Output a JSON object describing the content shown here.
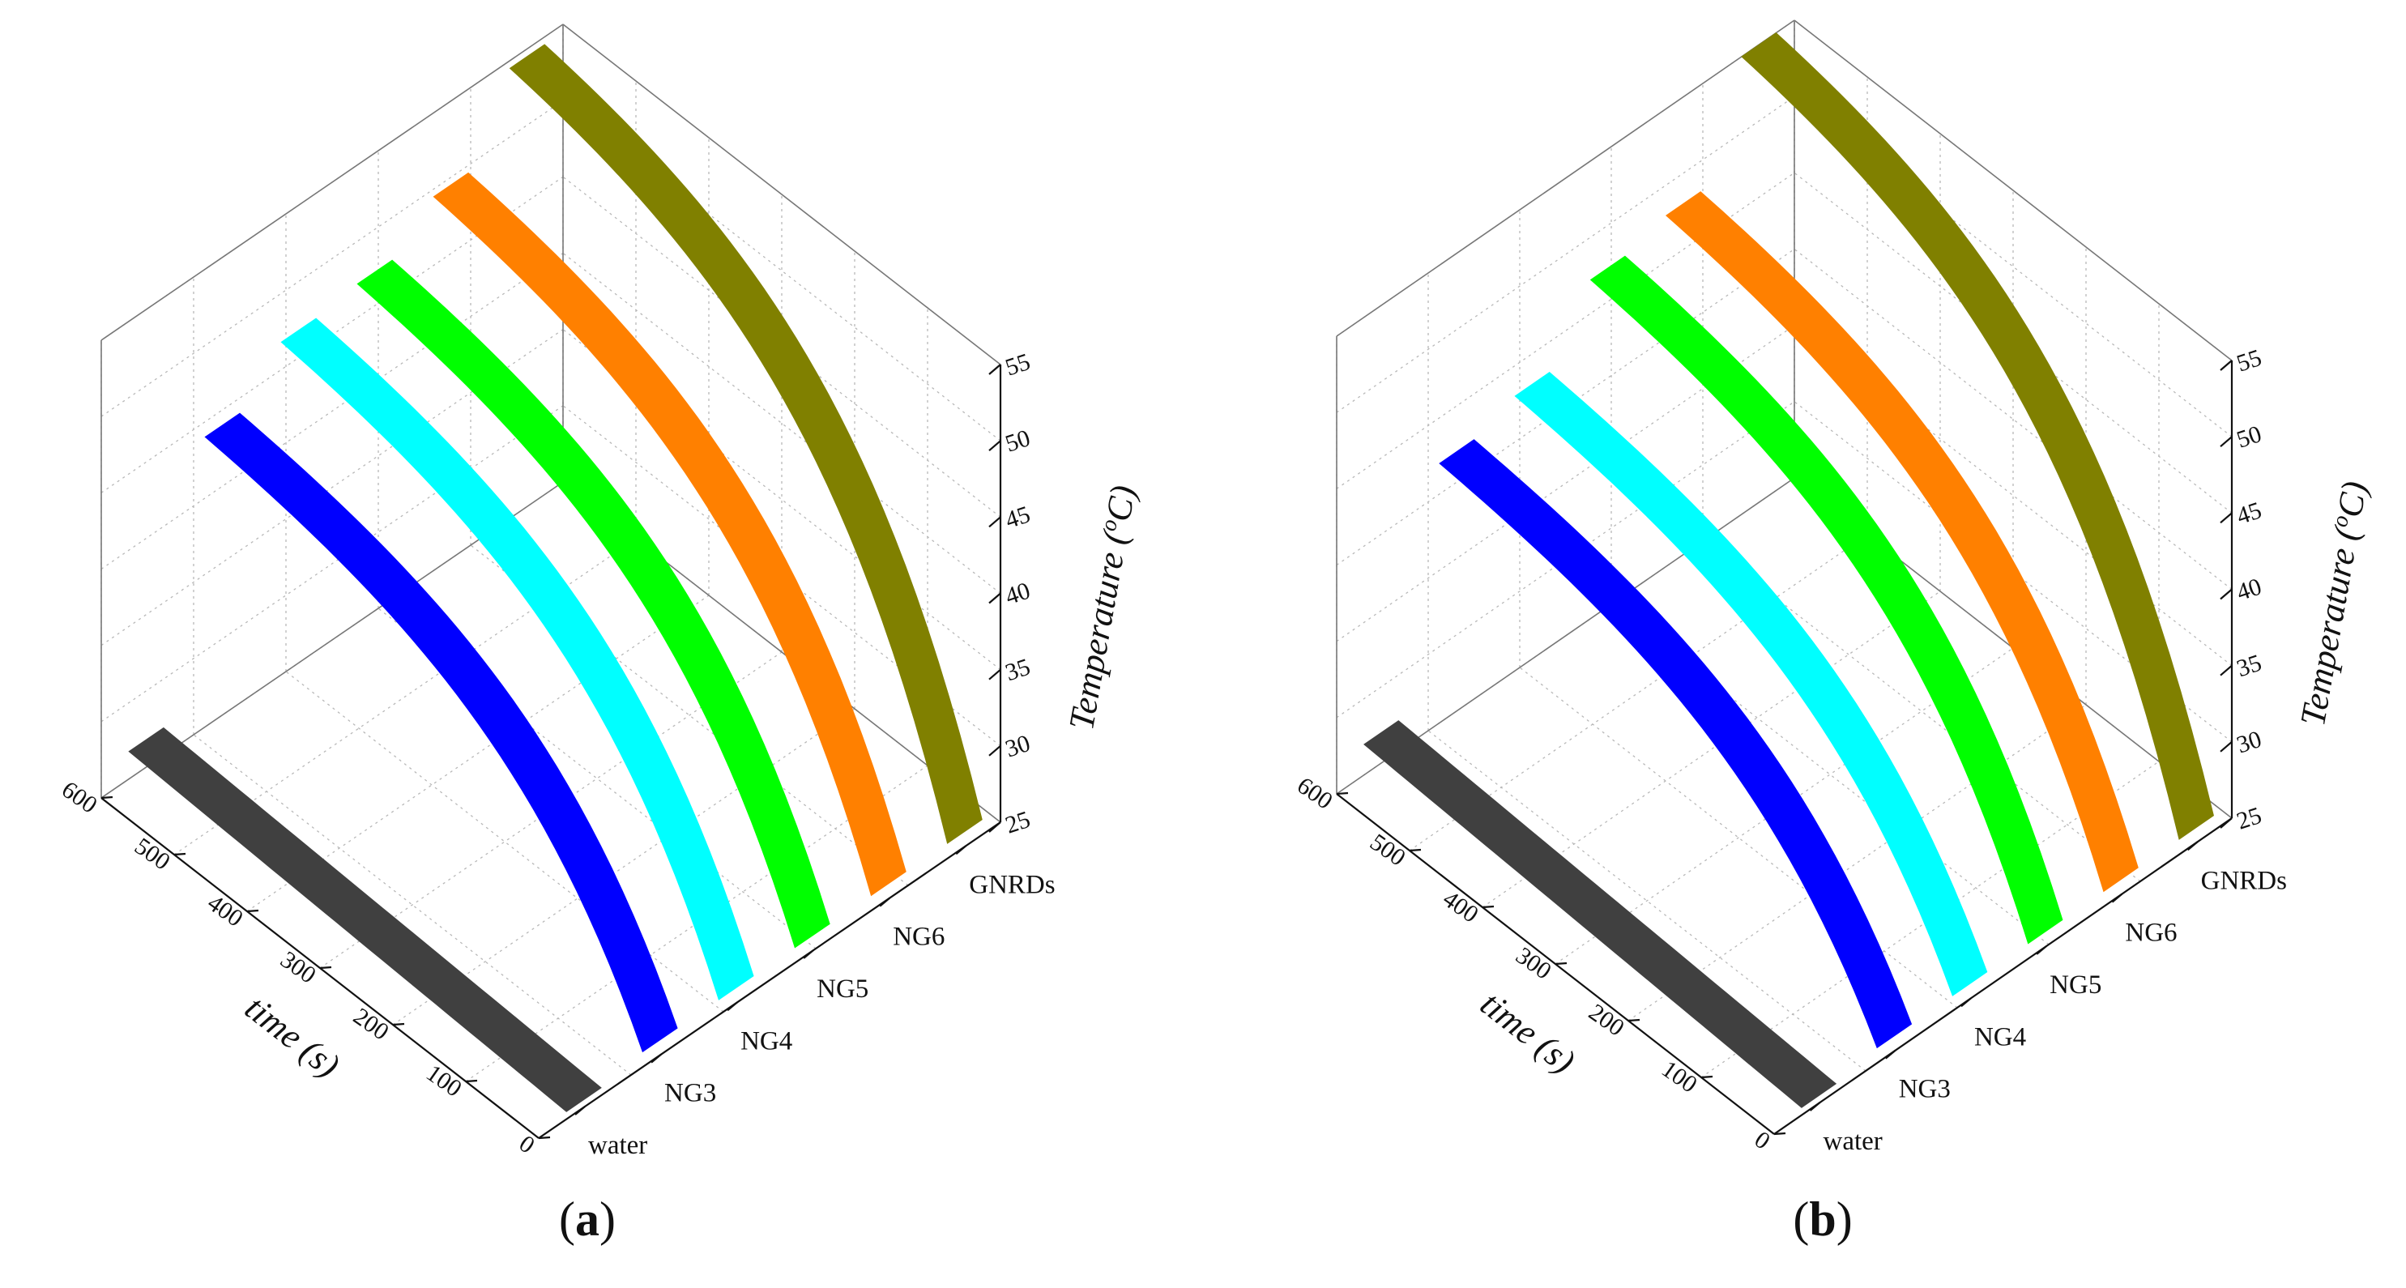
{
  "chart_data": [
    {
      "type": "3d-ribbon",
      "panel": "a",
      "caption_prefix": "(",
      "caption_letter": "a",
      "caption_suffix": ")",
      "xlabel": "time (s)",
      "ylabel_prefix": "Temperature (",
      "ylabel_sup": "o",
      "ylabel_unit": "C",
      "ylabel_suffix": ")",
      "time_ticks": [
        "0",
        "100",
        "200",
        "300",
        "400",
        "500",
        "600"
      ],
      "temp_ticks": [
        "25",
        "30",
        "35",
        "40",
        "45",
        "50",
        "55"
      ],
      "categories": [
        "water",
        "NG3",
        "NG4",
        "NG5",
        "NG6",
        "GNRDs"
      ],
      "xlim": [
        0,
        600
      ],
      "zlim": [
        25,
        55
      ],
      "series": [
        {
          "name": "water",
          "color": "#404040",
          "start": 25.5,
          "end": 26.8
        },
        {
          "name": "NG3",
          "color": "#0000ff",
          "start": 26,
          "end": 44.0
        },
        {
          "name": "NG4",
          "color": "#00ffff",
          "start": 26,
          "end": 46.8
        },
        {
          "name": "NG5",
          "color": "#00ff00",
          "start": 26,
          "end": 47.2
        },
        {
          "name": "NG6",
          "color": "#ff8000",
          "start": 26,
          "end": 49.5
        },
        {
          "name": "GNRDs",
          "color": "#808000",
          "start": 26,
          "end": 54.5
        }
      ]
    },
    {
      "type": "3d-ribbon",
      "panel": "b",
      "caption_prefix": "(",
      "caption_letter": "b",
      "caption_suffix": ")",
      "xlabel": "time (s)",
      "ylabel_prefix": "Temperature (",
      "ylabel_sup": "o",
      "ylabel_unit": "C",
      "ylabel_suffix": ")",
      "time_ticks": [
        "0",
        "100",
        "200",
        "300",
        "400",
        "500",
        "600"
      ],
      "temp_ticks": [
        "25",
        "30",
        "35",
        "40",
        "45",
        "50",
        "55"
      ],
      "categories": [
        "water",
        "NG3",
        "NG4",
        "NG5",
        "NG6",
        "GNRDs"
      ],
      "xlim": [
        0,
        600
      ],
      "zlim": [
        25,
        55
      ],
      "series": [
        {
          "name": "water",
          "color": "#404040",
          "start": 25.5,
          "end": 27.0
        },
        {
          "name": "NG3",
          "color": "#0000ff",
          "start": 26,
          "end": 42.0
        },
        {
          "name": "NG4",
          "color": "#00ffff",
          "start": 26,
          "end": 43.0
        },
        {
          "name": "NG5",
          "color": "#00ff00",
          "start": 26,
          "end": 47.2
        },
        {
          "name": "NG6",
          "color": "#ff8000",
          "start": 26,
          "end": 48.0
        },
        {
          "name": "GNRDs",
          "color": "#808000",
          "start": 26,
          "end": 55.0
        }
      ]
    }
  ]
}
